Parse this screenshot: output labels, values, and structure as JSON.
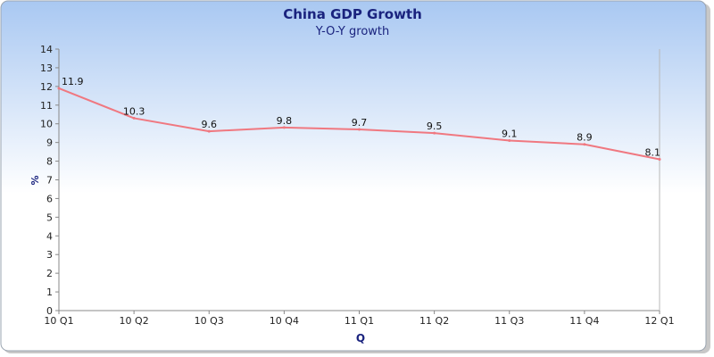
{
  "chart_data": {
    "type": "line",
    "title": "China GDP Growth",
    "subtitle": "Y-O-Y growth",
    "xlabel": "Q",
    "ylabel": "%",
    "categories": [
      "10 Q1",
      "10 Q2",
      "10 Q3",
      "10 Q4",
      "11 Q1",
      "11 Q2",
      "11 Q3",
      "11 Q4",
      "12 Q1"
    ],
    "series": [
      {
        "values": [
          11.9,
          10.3,
          9.6,
          9.8,
          9.7,
          9.5,
          9.1,
          8.9,
          8.1
        ]
      }
    ],
    "ylim": [
      0,
      14
    ],
    "yticks": [
      0,
      1,
      2,
      3,
      4,
      5,
      6,
      7,
      8,
      9,
      10,
      11,
      12,
      13,
      14
    ],
    "data_labels": [
      "11.9",
      "10.3",
      "9.6",
      "9.8",
      "9.7",
      "9.5",
      "9.1",
      "8.9",
      "8.1"
    ],
    "grid": false,
    "legend": "none",
    "colors": {
      "line": "#f07880",
      "title": "#1a237e",
      "subtitle": "#1a237e",
      "axis_label": "#1a237e",
      "background_top": "#a9c8f2",
      "background_bottom": "#ffffff",
      "frame_border": "#9aa4b0"
    }
  }
}
